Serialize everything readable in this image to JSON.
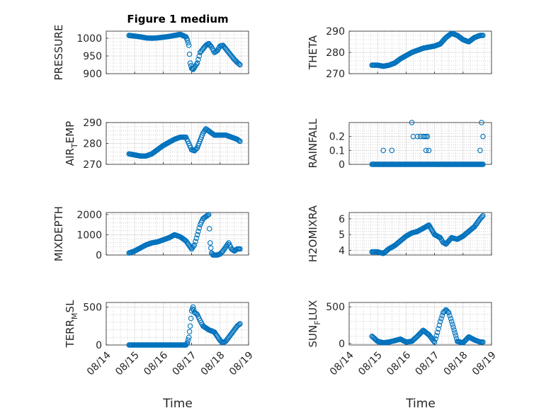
{
  "figure_title": "Figure 1 medium",
  "time_ticks": [
    "08/14",
    "08/15",
    "08/16",
    "08/17",
    "08/18",
    "08/19"
  ],
  "colors": {
    "marker": "#0072BD",
    "axis": "#262626",
    "grid": "#b0b0b0"
  },
  "chart_data": [
    {
      "type": "scatter",
      "id": "pressure",
      "column": "left",
      "row": 0,
      "ylabel": "PRESSURE",
      "ylim": [
        900,
        1020
      ],
      "yticks": [
        {
          "v": 900,
          "t": "900"
        },
        {
          "v": 950,
          "t": "950"
        },
        {
          "v": 1000,
          "t": "1000"
        }
      ],
      "x": [
        14.8,
        15.0,
        15.2,
        15.4,
        15.6,
        15.8,
        16.0,
        16.2,
        16.4,
        16.6,
        16.8,
        16.85,
        16.9,
        16.95,
        17.0,
        17.05,
        17.1,
        17.2,
        17.3,
        17.4,
        17.5,
        17.6,
        17.7,
        17.8,
        17.9,
        18.0,
        18.1,
        18.2,
        18.3,
        18.4,
        18.5,
        18.6,
        18.7
      ],
      "y": [
        1008,
        1006,
        1004,
        1001,
        1000,
        1001,
        1003,
        1005,
        1008,
        1011,
        1004,
        995,
        980,
        930,
        915,
        912,
        918,
        930,
        960,
        970,
        980,
        985,
        975,
        960,
        965,
        978,
        980,
        970,
        960,
        950,
        940,
        932,
        925
      ]
    },
    {
      "type": "scatter",
      "id": "theta",
      "column": "right",
      "row": 0,
      "ylabel": "THETA",
      "ylim": [
        270,
        290
      ],
      "yticks": [
        {
          "v": 270,
          "t": "270"
        },
        {
          "v": 280,
          "t": "280"
        },
        {
          "v": 290,
          "t": "290"
        }
      ],
      "x": [
        14.8,
        15.0,
        15.2,
        15.4,
        15.6,
        15.8,
        16.0,
        16.2,
        16.4,
        16.6,
        16.8,
        17.0,
        17.2,
        17.4,
        17.6,
        17.8,
        18.0,
        18.2,
        18.4,
        18.6,
        18.7
      ],
      "y": [
        274,
        274,
        273.5,
        274,
        275,
        277,
        278.5,
        280,
        281,
        282,
        282.5,
        283,
        284,
        287,
        289,
        288,
        286,
        285,
        287,
        288,
        288
      ]
    },
    {
      "type": "scatter",
      "id": "air_temp",
      "column": "left",
      "row": 1,
      "ylabel": "AIR",
      "ylabel_sub": "T",
      "ylabel_tail": "EMP",
      "ylim": [
        270,
        290
      ],
      "yticks": [
        {
          "v": 270,
          "t": "270"
        },
        {
          "v": 280,
          "t": "280"
        },
        {
          "v": 290,
          "t": "290"
        }
      ],
      "x": [
        14.8,
        15.0,
        15.2,
        15.4,
        15.6,
        15.8,
        16.0,
        16.2,
        16.4,
        16.6,
        16.8,
        16.9,
        17.0,
        17.1,
        17.2,
        17.4,
        17.5,
        17.6,
        17.8,
        18.0,
        18.2,
        18.4,
        18.6,
        18.7
      ],
      "y": [
        275,
        274.5,
        274,
        274,
        275,
        277,
        279,
        280.5,
        282,
        283,
        283,
        280,
        277,
        276.5,
        278,
        285,
        287,
        286,
        284,
        284,
        284,
        283,
        282,
        281
      ]
    },
    {
      "type": "scatter",
      "id": "rainfall",
      "column": "right",
      "row": 1,
      "ylabel": "RAINFALL",
      "ylim": [
        0,
        0.3
      ],
      "yticks": [
        {
          "v": 0,
          "t": "0"
        },
        {
          "v": 0.1,
          "t": "0.1"
        },
        {
          "v": 0.2,
          "t": "0.2"
        }
      ],
      "x": [
        14.8,
        15.0,
        15.2,
        15.4,
        15.6,
        15.8,
        16.0,
        16.2,
        16.4,
        16.6,
        16.8,
        17.0,
        17.2,
        17.4,
        17.6,
        17.8,
        18.0,
        18.2,
        18.4,
        18.6,
        18.7,
        15.2,
        15.5,
        16.2,
        16.25,
        16.4,
        16.5,
        16.6,
        16.65,
        16.7,
        16.75,
        16.7,
        16.8,
        18.6,
        18.65,
        18.7
      ],
      "y": [
        0,
        0,
        0,
        0,
        0,
        0,
        0,
        0,
        0,
        0,
        0,
        0,
        0,
        0,
        0,
        0,
        0,
        0,
        0,
        0,
        0,
        0.1,
        0.1,
        0.3,
        0.2,
        0.2,
        0.2,
        0.2,
        0.2,
        0.2,
        0.2,
        0.1,
        0.1,
        0.1,
        0.3,
        0.2
      ]
    },
    {
      "type": "scatter",
      "id": "mixdepth",
      "column": "left",
      "row": 2,
      "ylabel": "MIXDEPTH",
      "ylim": [
        0,
        2100
      ],
      "yticks": [
        {
          "v": 0,
          "t": "0"
        },
        {
          "v": 1000,
          "t": "1000"
        },
        {
          "v": 2000,
          "t": "2000"
        }
      ],
      "x": [
        14.8,
        15.0,
        15.2,
        15.4,
        15.6,
        15.8,
        16.0,
        16.2,
        16.4,
        16.6,
        16.8,
        17.0,
        17.1,
        17.2,
        17.3,
        17.4,
        17.5,
        17.6,
        17.65,
        17.7,
        17.75,
        17.8,
        17.9,
        18.0,
        18.1,
        18.2,
        18.3,
        18.4,
        18.5,
        18.6,
        18.7
      ],
      "y": [
        100,
        200,
        350,
        500,
        600,
        650,
        750,
        850,
        1000,
        900,
        700,
        300,
        500,
        1000,
        1500,
        1800,
        1900,
        2000,
        600,
        100,
        0,
        0,
        0,
        50,
        200,
        400,
        600,
        300,
        200,
        300,
        300
      ]
    },
    {
      "type": "scatter",
      "id": "h2omixra",
      "column": "right",
      "row": 2,
      "ylabel": "H2OMIXRA",
      "ylim": [
        3.7,
        6.4
      ],
      "yticks": [
        {
          "v": 4,
          "t": "4"
        },
        {
          "v": 5,
          "t": "5"
        },
        {
          "v": 6,
          "t": "6"
        }
      ],
      "x": [
        14.8,
        15.0,
        15.2,
        15.4,
        15.6,
        15.8,
        16.0,
        16.2,
        16.4,
        16.6,
        16.8,
        17.0,
        17.2,
        17.3,
        17.4,
        17.6,
        17.8,
        18.0,
        18.2,
        18.4,
        18.6,
        18.7
      ],
      "y": [
        3.9,
        3.9,
        3.8,
        4.1,
        4.3,
        4.6,
        4.9,
        5.1,
        5.2,
        5.4,
        5.6,
        5.0,
        4.8,
        4.5,
        4.4,
        4.8,
        4.7,
        4.9,
        5.2,
        5.5,
        6.0,
        6.2
      ]
    },
    {
      "type": "scatter",
      "id": "terr_msl",
      "column": "left",
      "row": 3,
      "ylabel": "TERR",
      "ylabel_sub": "M",
      "ylabel_tail": "SL",
      "ylim": [
        0,
        560
      ],
      "yticks": [
        {
          "v": 0,
          "t": "0"
        },
        {
          "v": 500,
          "t": "500"
        }
      ],
      "x": [
        14.8,
        15.0,
        15.2,
        15.4,
        15.6,
        15.8,
        16.0,
        16.2,
        16.4,
        16.6,
        16.8,
        16.85,
        16.9,
        16.95,
        17.0,
        17.05,
        17.1,
        17.2,
        17.3,
        17.4,
        17.6,
        17.8,
        18.0,
        18.1,
        18.2,
        18.3,
        18.4,
        18.5,
        18.6,
        18.7
      ],
      "y": [
        0,
        0,
        0,
        0,
        0,
        0,
        0,
        0,
        0,
        0,
        0,
        30,
        100,
        250,
        450,
        500,
        430,
        400,
        320,
        250,
        200,
        170,
        60,
        30,
        50,
        100,
        150,
        200,
        250,
        280
      ]
    },
    {
      "type": "scatter",
      "id": "sun_flux",
      "column": "right",
      "row": 3,
      "ylabel": "SUN",
      "ylabel_sub": "F",
      "ylabel_tail": "LUX",
      "ylim": [
        -20,
        560
      ],
      "yticks": [
        {
          "v": 0,
          "t": "0"
        },
        {
          "v": 500,
          "t": "500"
        }
      ],
      "x": [
        14.8,
        15.0,
        15.2,
        15.4,
        15.6,
        15.8,
        16.0,
        16.2,
        16.4,
        16.6,
        16.8,
        17.0,
        17.1,
        17.2,
        17.3,
        17.4,
        17.5,
        17.6,
        17.8,
        18.0,
        18.2,
        18.4,
        18.6,
        18.7
      ],
      "y": [
        100,
        30,
        10,
        20,
        40,
        60,
        20,
        30,
        100,
        180,
        120,
        20,
        150,
        300,
        420,
        460,
        420,
        300,
        30,
        10,
        90,
        50,
        20,
        20
      ]
    }
  ]
}
